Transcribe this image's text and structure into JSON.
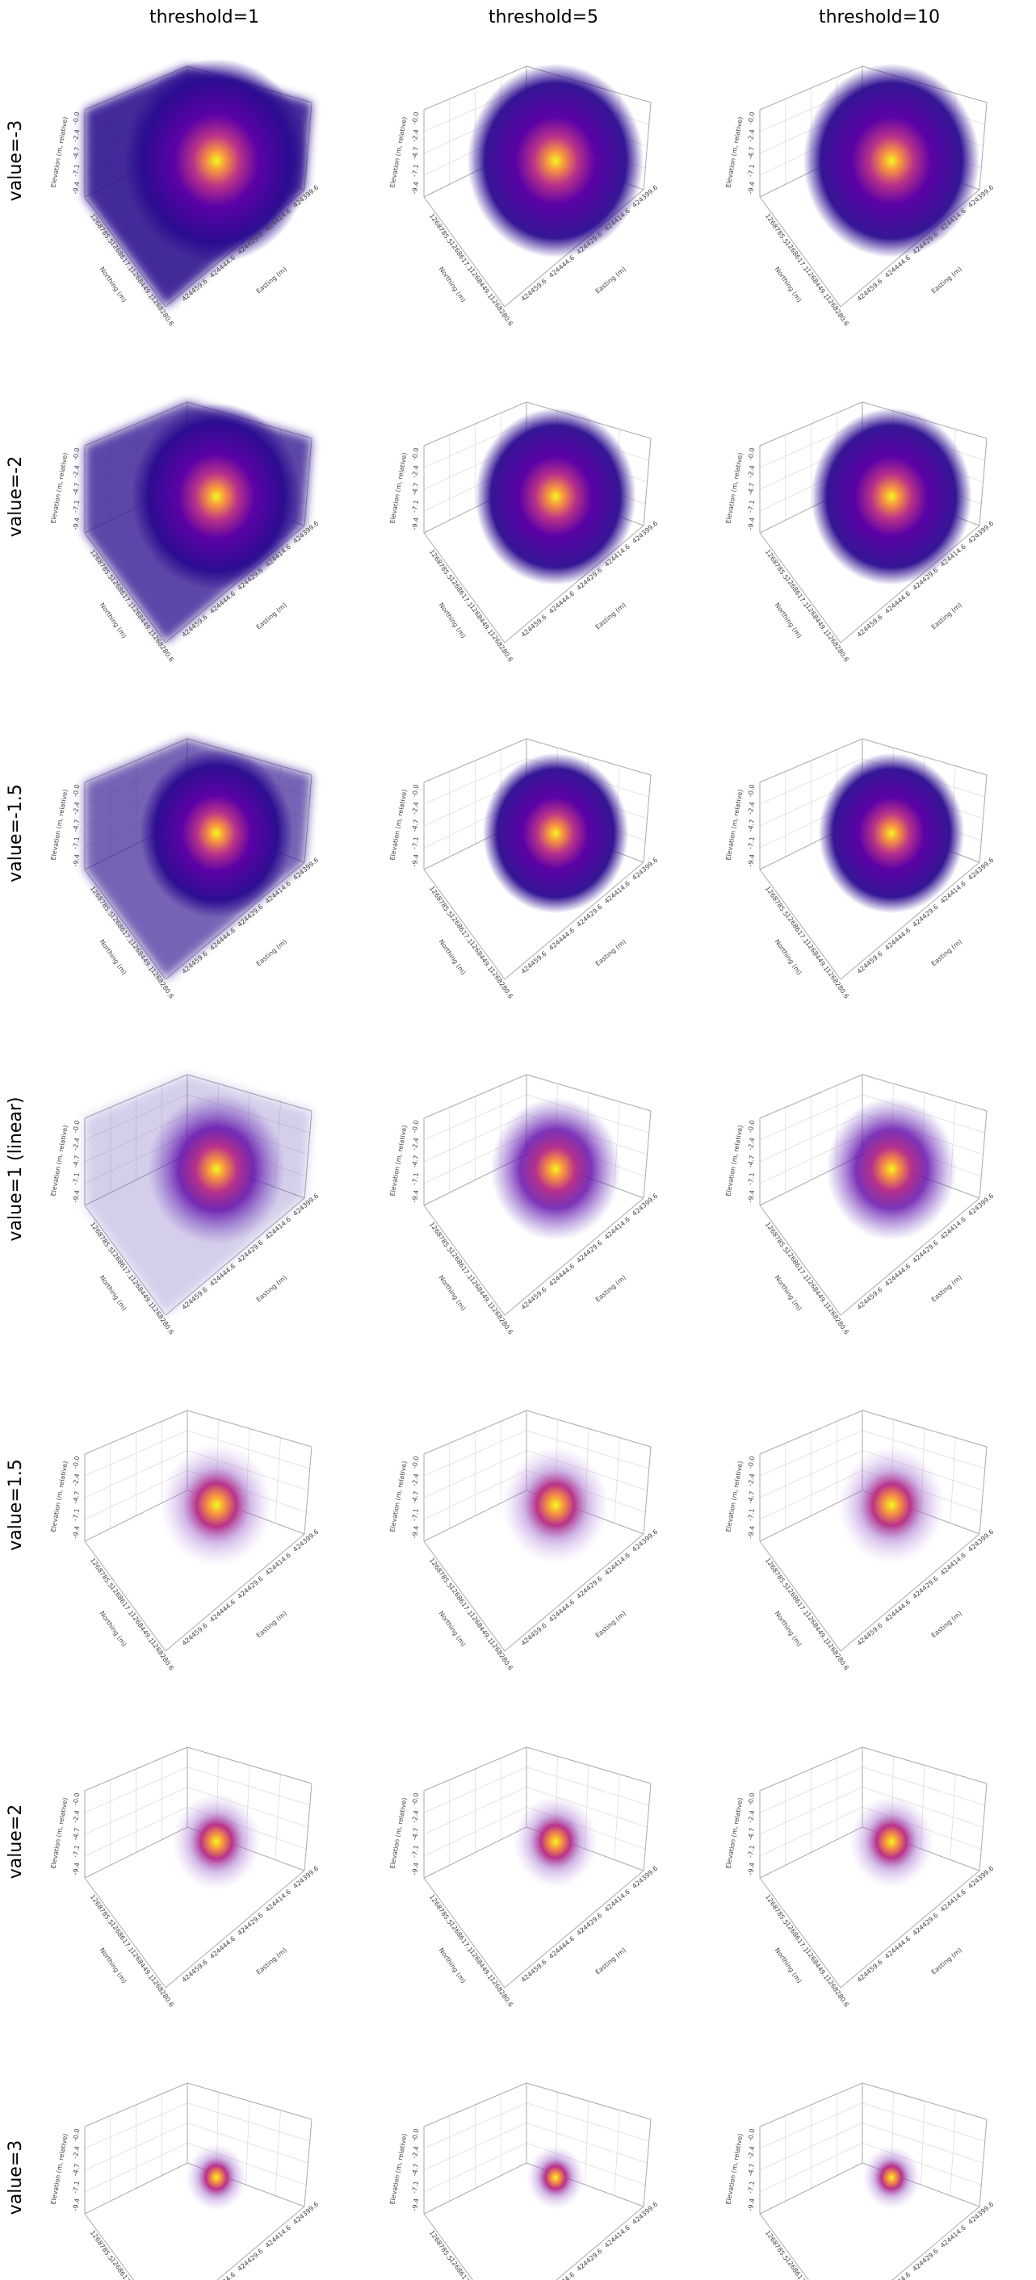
{
  "column_titles": [
    "threshold=1",
    "threshold=5",
    "threshold=10"
  ],
  "row_labels": [
    "value=-3",
    "value=-2",
    "value=-1.5",
    "value=1 (linear)",
    "value=1.5",
    "value=2",
    "value=3"
  ],
  "axes": {
    "x_label": "Northing (m)",
    "y_label": "Easting (m)",
    "z_label": "Elevation (m, relative)",
    "x_ticks": [
      "1268785.5",
      "1268617.1",
      "1268449.1",
      "1268280.6"
    ],
    "y_ticks": [
      "424459.6",
      "424444.6",
      "424429.6",
      "424414.6",
      "424399.6"
    ],
    "z_ticks": [
      "-9.4",
      "-7.1",
      "-4.7",
      "-2.4",
      "-0.0"
    ]
  }
}
